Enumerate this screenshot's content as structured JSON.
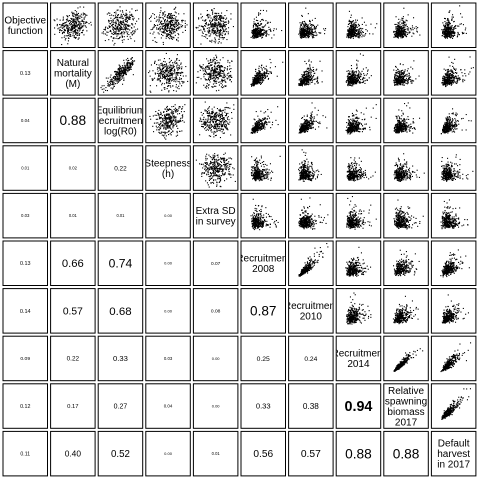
{
  "chart_data": {
    "type": "scatter",
    "layout": "pairs-matrix",
    "variables": [
      {
        "label": "Objective\nfunction"
      },
      {
        "label": "Natural\nmortality\n(M)"
      },
      {
        "label": "Equilibrium\nrecruitment\nlog(R0)"
      },
      {
        "label": "Steepness\n(h)"
      },
      {
        "label": "Extra SD\nin survey"
      },
      {
        "label": "Recruitment\n2008"
      },
      {
        "label": "Recruitment\n2010"
      },
      {
        "label": "Recruitment\n2014"
      },
      {
        "label": "Relative\nspawning\nbiomass\n2017"
      },
      {
        "label": "Default\nharvest\nin 2017"
      }
    ],
    "correlation_labels": [
      {
        "row": 1,
        "col": 0,
        "text": "0.13",
        "value": 0.13
      },
      {
        "row": 2,
        "col": 0,
        "text": "0.04",
        "value": 0.04
      },
      {
        "row": 2,
        "col": 1,
        "text": "0.88",
        "value": 0.88
      },
      {
        "row": 3,
        "col": 0,
        "text": "0.01",
        "value": 0.01
      },
      {
        "row": 3,
        "col": 1,
        "text": "0.02",
        "value": 0.02
      },
      {
        "row": 3,
        "col": 2,
        "text": "0.22",
        "value": 0.22
      },
      {
        "row": 4,
        "col": 0,
        "text": "0.03",
        "value": 0.03
      },
      {
        "row": 4,
        "col": 1,
        "text": "0.01",
        "value": 0.01
      },
      {
        "row": 4,
        "col": 2,
        "text": "0.01",
        "value": 0.01
      },
      {
        "row": 4,
        "col": 3,
        "text": "0.00",
        "value": 0.0
      },
      {
        "row": 5,
        "col": 0,
        "text": "0.13",
        "value": 0.13
      },
      {
        "row": 5,
        "col": 1,
        "text": "0.66",
        "value": 0.66
      },
      {
        "row": 5,
        "col": 2,
        "text": "0.74",
        "value": 0.74
      },
      {
        "row": 5,
        "col": 3,
        "text": "0.00",
        "value": 0.0
      },
      {
        "row": 5,
        "col": 4,
        "text": "0.07",
        "value": 0.07
      },
      {
        "row": 6,
        "col": 0,
        "text": "0.14",
        "value": 0.14
      },
      {
        "row": 6,
        "col": 1,
        "text": "0.57",
        "value": 0.57
      },
      {
        "row": 6,
        "col": 2,
        "text": "0.68",
        "value": 0.68
      },
      {
        "row": 6,
        "col": 3,
        "text": "0.00",
        "value": 0.0
      },
      {
        "row": 6,
        "col": 4,
        "text": "0.08",
        "value": 0.08
      },
      {
        "row": 6,
        "col": 5,
        "text": "0.87",
        "value": 0.87
      },
      {
        "row": 7,
        "col": 0,
        "text": "0.09",
        "value": 0.09
      },
      {
        "row": 7,
        "col": 1,
        "text": "0.22",
        "value": 0.22
      },
      {
        "row": 7,
        "col": 2,
        "text": "0.33",
        "value": 0.33
      },
      {
        "row": 7,
        "col": 3,
        "text": "0.03",
        "value": 0.03
      },
      {
        "row": 7,
        "col": 4,
        "text": "0.00",
        "value": 0.0
      },
      {
        "row": 7,
        "col": 5,
        "text": "0.25",
        "value": 0.25
      },
      {
        "row": 7,
        "col": 6,
        "text": "0.24",
        "value": 0.24
      },
      {
        "row": 8,
        "col": 0,
        "text": "0.12",
        "value": 0.12
      },
      {
        "row": 8,
        "col": 1,
        "text": "0.17",
        "value": 0.17
      },
      {
        "row": 8,
        "col": 2,
        "text": "0.27",
        "value": 0.27
      },
      {
        "row": 8,
        "col": 3,
        "text": "0.04",
        "value": 0.04
      },
      {
        "row": 8,
        "col": 4,
        "text": "0.00",
        "value": 0.0
      },
      {
        "row": 8,
        "col": 5,
        "text": "0.33",
        "value": 0.33
      },
      {
        "row": 8,
        "col": 6,
        "text": "0.38",
        "value": 0.38
      },
      {
        "row": 8,
        "col": 7,
        "text": "0.94",
        "value": 0.94
      },
      {
        "row": 9,
        "col": 0,
        "text": "0.11",
        "value": 0.11
      },
      {
        "row": 9,
        "col": 1,
        "text": "0.40",
        "value": 0.4
      },
      {
        "row": 9,
        "col": 2,
        "text": "0.52",
        "value": 0.52
      },
      {
        "row": 9,
        "col": 3,
        "text": "0.00",
        "value": 0.0
      },
      {
        "row": 9,
        "col": 4,
        "text": "0.01",
        "value": 0.01
      },
      {
        "row": 9,
        "col": 5,
        "text": "0.56",
        "value": 0.56
      },
      {
        "row": 9,
        "col": 6,
        "text": "0.57",
        "value": 0.57
      },
      {
        "row": 9,
        "col": 7,
        "text": "0.88",
        "value": 0.88
      },
      {
        "row": 9,
        "col": 8,
        "text": "0.88",
        "value": 0.88
      }
    ],
    "point_color": "#000000",
    "panel_border_color": "#000000",
    "grid": false,
    "legend": "none"
  }
}
